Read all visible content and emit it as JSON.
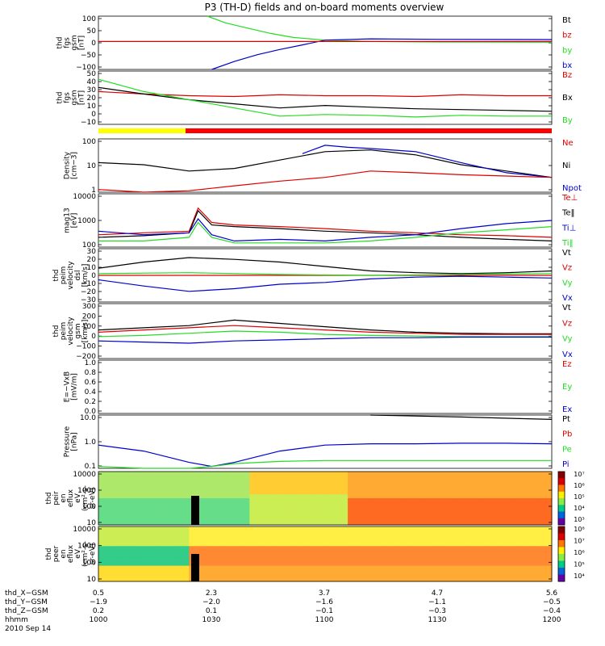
{
  "title": "P3 (TH-D) fields and on-board moments overview",
  "colors": {
    "black": "#000000",
    "red": "#dd0000",
    "green": "#22dd22",
    "blue": "#0000cc",
    "yellow": "#ffff00",
    "bar_red": "#ff0000"
  },
  "chart_data": [
    {
      "type": "line",
      "ylabel": [
        "thd",
        "fgs",
        "gsm",
        "[nT]"
      ],
      "yticks": [
        "100",
        "50",
        "0",
        "−50",
        "−100"
      ],
      "ylim": [
        -100,
        100
      ],
      "legend": [
        {
          "name": "Bt",
          "color": "black"
        },
        {
          "name": "bz",
          "color": "red"
        },
        {
          "name": "by",
          "color": "green"
        },
        {
          "name": "bx",
          "color": "blue"
        }
      ],
      "series": [
        {
          "name": "by",
          "color": "green",
          "x": [
            0.24,
            0.28,
            0.33,
            0.38,
            0.43,
            0.5,
            0.6,
            0.75,
            1.0
          ],
          "y": [
            100,
            75,
            55,
            35,
            20,
            10,
            5,
            3,
            2
          ]
        },
        {
          "name": "bx",
          "color": "blue",
          "x": [
            0.25,
            0.3,
            0.35,
            0.4,
            0.45,
            0.5,
            0.6,
            0.75,
            1.0
          ],
          "y": [
            -100,
            -70,
            -45,
            -25,
            -8,
            10,
            15,
            13,
            12
          ]
        },
        {
          "name": "bz",
          "color": "red",
          "x": [
            0.0,
            1.0
          ],
          "y": [
            5,
            5
          ]
        }
      ]
    },
    {
      "type": "line",
      "ylabel": [
        "thd",
        "fgs",
        "gsm",
        "[nT]"
      ],
      "yticks": [
        "50",
        "40",
        "30",
        "20",
        "10",
        "0",
        "−10"
      ],
      "ylim": [
        -15,
        50
      ],
      "legend": [
        {
          "name": "Bz",
          "color": "red"
        },
        {
          "name": "Bx",
          "color": "black"
        },
        {
          "name": "By",
          "color": "green"
        }
      ],
      "series": [
        {
          "name": "Bz",
          "color": "red",
          "x": [
            0,
            0.1,
            0.2,
            0.3,
            0.4,
            0.5,
            0.6,
            0.7,
            0.8,
            0.9,
            1.0
          ],
          "y": [
            25,
            22,
            20,
            19,
            21,
            20,
            20,
            19,
            21,
            20,
            20
          ]
        },
        {
          "name": "Bx",
          "color": "black",
          "x": [
            0,
            0.1,
            0.2,
            0.3,
            0.4,
            0.5,
            0.6,
            0.7,
            0.8,
            0.9,
            1.0
          ],
          "y": [
            30,
            22,
            15,
            10,
            5,
            8,
            6,
            4,
            3,
            2,
            1
          ]
        },
        {
          "name": "By",
          "color": "green",
          "x": [
            0,
            0.1,
            0.2,
            0.3,
            0.4,
            0.5,
            0.6,
            0.7,
            0.8,
            0.9,
            1.0
          ],
          "y": [
            40,
            25,
            15,
            5,
            -5,
            -3,
            -4,
            -6,
            -4,
            -5,
            -5
          ]
        }
      ]
    },
    {
      "type": "line",
      "ylabel": [
        "Density",
        "[cm−3]"
      ],
      "yticks": [
        "100",
        "10",
        "1"
      ],
      "ylim": [
        0.6,
        200
      ],
      "log": true,
      "legend": [
        {
          "name": "Ne",
          "color": "red"
        },
        {
          "name": "Ni",
          "color": "black"
        },
        {
          "name": "Npot",
          "color": "blue"
        }
      ],
      "series": [
        {
          "name": "Ni",
          "color": "black",
          "x": [
            0,
            0.1,
            0.2,
            0.3,
            0.4,
            0.5,
            0.6,
            0.7,
            0.8,
            0.9,
            1.0
          ],
          "y": [
            15,
            12,
            6,
            8,
            20,
            50,
            60,
            35,
            12,
            6,
            3
          ]
        },
        {
          "name": "Npot",
          "color": "blue",
          "x": [
            0.45,
            0.5,
            0.55,
            0.6,
            0.7,
            0.8,
            0.9,
            1.0
          ],
          "y": [
            40,
            100,
            80,
            70,
            50,
            15,
            5,
            3
          ]
        },
        {
          "name": "Ne",
          "color": "red",
          "x": [
            0,
            0.1,
            0.2,
            0.3,
            0.4,
            0.5,
            0.6,
            0.7,
            0.8,
            0.9,
            1.0
          ],
          "y": [
            0.8,
            0.6,
            0.7,
            1.2,
            2,
            3,
            6,
            5,
            4,
            3.5,
            3
          ]
        }
      ]
    },
    {
      "type": "line",
      "ylabel": [
        "mag13",
        "[eV]"
      ],
      "yticks": [
        "10000",
        "1000",
        "100"
      ],
      "ylim": [
        50,
        20000
      ],
      "log": true,
      "legend": [
        {
          "name": "Te⊥",
          "color": "red"
        },
        {
          "name": "Te‖",
          "color": "black"
        },
        {
          "name": "Ti⊥",
          "color": "blue"
        },
        {
          "name": "Ti‖",
          "color": "green"
        }
      ],
      "series": [
        {
          "name": "Te⊥",
          "color": "red",
          "x": [
            0,
            0.1,
            0.2,
            0.22,
            0.25,
            0.3,
            0.4,
            0.5,
            0.6,
            0.7,
            0.8,
            0.9,
            1.0
          ],
          "y": [
            200,
            250,
            300,
            4000,
            800,
            600,
            500,
            400,
            300,
            250,
            200,
            180,
            150
          ]
        },
        {
          "name": "Te‖",
          "color": "black",
          "x": [
            0,
            0.1,
            0.2,
            0.22,
            0.25,
            0.3,
            0.4,
            0.5,
            0.6,
            0.7,
            0.8,
            0.9,
            1.0
          ],
          "y": [
            150,
            180,
            250,
            3000,
            600,
            500,
            400,
            300,
            250,
            200,
            150,
            120,
            100
          ]
        },
        {
          "name": "Ti⊥",
          "color": "blue",
          "x": [
            0,
            0.1,
            0.2,
            0.22,
            0.25,
            0.3,
            0.4,
            0.5,
            0.6,
            0.7,
            0.8,
            0.9,
            1.0
          ],
          "y": [
            300,
            200,
            250,
            1200,
            200,
            100,
            120,
            100,
            150,
            200,
            400,
            700,
            1000
          ]
        },
        {
          "name": "Ti‖",
          "color": "green",
          "x": [
            0,
            0.1,
            0.2,
            0.22,
            0.25,
            0.3,
            0.4,
            0.5,
            0.6,
            0.7,
            0.8,
            0.9,
            1.0
          ],
          "y": [
            100,
            100,
            150,
            800,
            150,
            80,
            80,
            80,
            100,
            150,
            250,
            350,
            500
          ]
        }
      ]
    },
    {
      "type": "line",
      "ylabel": [
        "thd",
        "peim",
        "velocity",
        "dsl",
        "[km/s]"
      ],
      "yticks": [
        "30",
        "20",
        "10",
        "0",
        "−10",
        "−20",
        "−30"
      ],
      "ylim": [
        -30,
        30
      ],
      "legend": [
        {
          "name": "Vt",
          "color": "black"
        },
        {
          "name": "Vz",
          "color": "red"
        },
        {
          "name": "Vy",
          "color": "green"
        },
        {
          "name": "Vx",
          "color": "blue"
        }
      ],
      "series": [
        {
          "name": "Vt",
          "color": "black",
          "x": [
            0,
            0.1,
            0.2,
            0.3,
            0.4,
            0.5,
            0.6,
            0.7,
            0.8,
            0.9,
            1.0
          ],
          "y": [
            8,
            15,
            20,
            18,
            15,
            10,
            5,
            3,
            2,
            3,
            5
          ]
        },
        {
          "name": "Vz",
          "color": "red",
          "x": [
            0,
            1.0
          ],
          "y": [
            0,
            0
          ]
        },
        {
          "name": "Vy",
          "color": "green",
          "x": [
            0,
            0.2,
            0.4,
            0.6,
            0.8,
            1.0
          ],
          "y": [
            2,
            3,
            1,
            0,
            1,
            2
          ]
        },
        {
          "name": "Vx",
          "color": "blue",
          "x": [
            0,
            0.1,
            0.2,
            0.3,
            0.4,
            0.5,
            0.6,
            0.7,
            0.8,
            0.9,
            1.0
          ],
          "y": [
            -5,
            -12,
            -18,
            -15,
            -10,
            -8,
            -4,
            -2,
            -1,
            -2,
            -3
          ]
        }
      ]
    },
    {
      "type": "line",
      "ylabel": [
        "thd",
        "peim",
        "velocity",
        "gsm",
        "[km/s]"
      ],
      "yticks": [
        "300",
        "200",
        "100",
        "0",
        "−100",
        "−200"
      ],
      "ylim": [
        -200,
        300
      ],
      "legend": [
        {
          "name": "Vt",
          "color": "black"
        },
        {
          "name": "Vz",
          "color": "red"
        },
        {
          "name": "Vy",
          "color": "green"
        },
        {
          "name": "Vx",
          "color": "blue"
        }
      ],
      "series": [
        {
          "name": "Vt",
          "color": "black",
          "x": [
            0,
            0.1,
            0.2,
            0.3,
            0.4,
            0.5,
            0.6,
            0.7,
            0.8,
            0.9,
            1.0
          ],
          "y": [
            60,
            80,
            100,
            150,
            120,
            90,
            60,
            40,
            30,
            25,
            25
          ]
        },
        {
          "name": "Vz",
          "color": "red",
          "x": [
            0,
            0.1,
            0.2,
            0.3,
            0.4,
            0.5,
            0.6,
            0.7,
            0.8,
            0.9,
            1.0
          ],
          "y": [
            40,
            60,
            80,
            100,
            80,
            60,
            40,
            30,
            20,
            20,
            20
          ]
        },
        {
          "name": "Vy",
          "color": "green",
          "x": [
            0,
            0.1,
            0.2,
            0.3,
            0.4,
            0.5,
            0.6,
            0.7,
            0.8,
            0.9,
            1.0
          ],
          "y": [
            0,
            10,
            30,
            50,
            40,
            20,
            10,
            5,
            0,
            0,
            0
          ]
        },
        {
          "name": "Vx",
          "color": "blue",
          "x": [
            0,
            0.1,
            0.2,
            0.3,
            0.4,
            0.5,
            0.6,
            0.7,
            0.8,
            0.9,
            1.0
          ],
          "y": [
            -40,
            -50,
            -60,
            -40,
            -30,
            -20,
            -10,
            -10,
            -5,
            -5,
            -5
          ]
        }
      ]
    },
    {
      "type": "line",
      "ylabel": [
        "E=−VxB",
        "[mV/m]"
      ],
      "yticks": [
        "1.0",
        "0.8",
        "0.6",
        "0.4",
        "0.2",
        "0.0"
      ],
      "ylim": [
        0,
        1
      ],
      "legend": [
        {
          "name": "Ez",
          "color": "red"
        },
        {
          "name": "Ey",
          "color": "green"
        },
        {
          "name": "Ex",
          "color": "blue"
        }
      ],
      "series": []
    },
    {
      "type": "line",
      "ylabel": [
        "Pressure",
        "[nPa]"
      ],
      "yticks": [
        "10.0",
        "1.0",
        "0.1"
      ],
      "ylim": [
        0.04,
        20
      ],
      "log": true,
      "legend": [
        {
          "name": "Pt",
          "color": "black"
        },
        {
          "name": "Pb",
          "color": "red"
        },
        {
          "name": "Pe",
          "color": "green"
        },
        {
          "name": "Pi",
          "color": "blue"
        }
      ],
      "series": [
        {
          "name": "Pt",
          "color": "black",
          "x": [
            0.6,
            0.8,
            1.0
          ],
          "y": [
            20,
            16,
            12
          ]
        },
        {
          "name": "Pi",
          "color": "blue",
          "x": [
            0,
            0.1,
            0.2,
            0.25,
            0.3,
            0.4,
            0.5,
            0.6,
            0.7,
            0.8,
            0.9,
            1.0
          ],
          "y": [
            0.6,
            0.3,
            0.08,
            0.05,
            0.08,
            0.3,
            0.6,
            0.7,
            0.7,
            0.75,
            0.75,
            0.7
          ]
        },
        {
          "name": "Pe",
          "color": "green",
          "x": [
            0,
            0.1,
            0.2,
            0.25,
            0.3,
            0.4,
            0.5,
            0.6,
            0.7,
            0.8,
            0.9,
            1.0
          ],
          "y": [
            0.05,
            0.04,
            0.04,
            0.05,
            0.07,
            0.09,
            0.1,
            0.1,
            0.1,
            0.1,
            0.1,
            0.1
          ]
        }
      ]
    },
    {
      "type": "heatmap",
      "ylabel": [
        "thd",
        "peir",
        "en",
        "eflux",
        "eV",
        "(cm²-s-",
        "sr-eV)"
      ],
      "yticks": [
        "10000",
        "1000",
        "100",
        "10"
      ],
      "colorbar_ticks": [
        "10⁷",
        "10⁶",
        "10⁵",
        "10⁴",
        "10³"
      ]
    },
    {
      "type": "heatmap",
      "ylabel": [
        "thd",
        "peer",
        "en",
        "eflux",
        "eV",
        "(cm²-s-",
        "sr-eV)"
      ],
      "yticks": [
        "10000",
        "1000",
        "100",
        "10"
      ],
      "colorbar_ticks": [
        "10⁸",
        "10⁷",
        "10⁶",
        "10⁵",
        "10⁴"
      ]
    }
  ],
  "xaxis": {
    "rows": [
      {
        "label": "thd_X−GSM",
        "values": [
          "0.5",
          "2.3",
          "3.7",
          "4.7",
          "5.6"
        ]
      },
      {
        "label": "thd_Y−GSM",
        "values": [
          "−1.9",
          "−2.0",
          "−1.6",
          "−1.1",
          "−0.5"
        ]
      },
      {
        "label": "thd_Z−GSM",
        "values": [
          "0.2",
          "0.1",
          "−0.1",
          "−0.3",
          "−0.4"
        ]
      },
      {
        "label": "hhmm",
        "values": [
          "1000",
          "1030",
          "1100",
          "1130",
          "1200"
        ]
      }
    ],
    "date": "2010 Sep 14"
  }
}
